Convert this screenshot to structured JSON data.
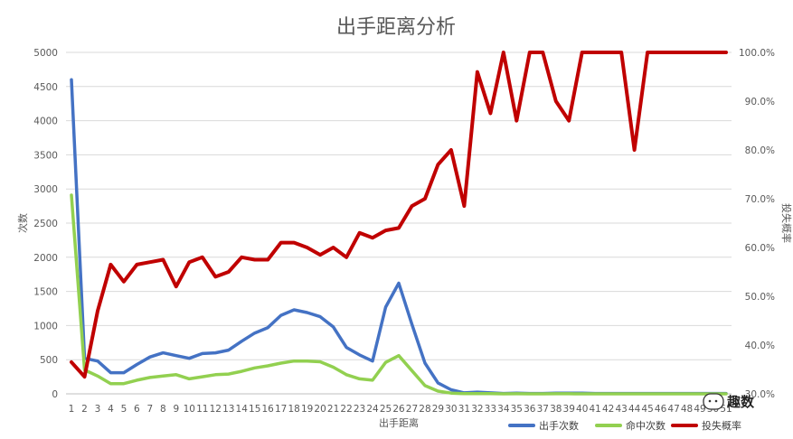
{
  "chart_data": {
    "type": "line",
    "title": "出手距离分析",
    "xlabel": "出手距离",
    "ylabel": "次数",
    "y2label": "投失概率",
    "categories": [
      1,
      2,
      3,
      4,
      5,
      6,
      7,
      8,
      9,
      10,
      11,
      12,
      13,
      14,
      15,
      16,
      17,
      18,
      19,
      20,
      21,
      22,
      23,
      24,
      25,
      26,
      27,
      28,
      29,
      30,
      31,
      32,
      33,
      34,
      35,
      36,
      37,
      38,
      39,
      40,
      41,
      42,
      43,
      44,
      45,
      46,
      47,
      48,
      49,
      50,
      51
    ],
    "x_tick_labels": [
      "1",
      "2",
      "3",
      "4",
      "5",
      "6",
      "7",
      "8",
      "9",
      "10",
      "11",
      "12",
      "13",
      "14",
      "15",
      "16",
      "17",
      "18",
      "19",
      "20",
      "21",
      "22",
      "23",
      "24",
      "25",
      "26",
      "27",
      "28",
      "29",
      "30",
      "31",
      "32",
      "33",
      "34",
      "35",
      "36",
      "37",
      "38",
      "39",
      "40",
      "41",
      "42",
      "43",
      "44",
      "45",
      "46",
      "47",
      "48",
      "49",
      "50",
      "51"
    ],
    "ylim": [
      0,
      5000
    ],
    "y_ticks": [
      "0",
      "500",
      "1000",
      "1500",
      "2000",
      "2500",
      "3000",
      "3500",
      "4000",
      "4500",
      "5000"
    ],
    "y2lim": [
      0.3,
      1.0
    ],
    "y2_ticks": [
      "30.0%",
      "40.0%",
      "50.0%",
      "60.0%",
      "70.0%",
      "80.0%",
      "90.0%",
      "100.0%"
    ],
    "grid": true,
    "legend_position": "bottom-right",
    "series": [
      {
        "name": "出手次数",
        "axis": "left",
        "color": "#4472c4",
        "values": [
          4600,
          520,
          480,
          310,
          310,
          430,
          540,
          600,
          560,
          520,
          590,
          600,
          640,
          770,
          890,
          970,
          1150,
          1230,
          1190,
          1130,
          980,
          680,
          570,
          480,
          1270,
          1620,
          1020,
          450,
          160,
          60,
          15,
          25,
          15,
          5,
          10,
          5,
          5,
          10,
          10,
          10,
          5,
          5,
          5,
          5,
          5,
          5,
          5,
          5,
          5,
          5,
          5
        ]
      },
      {
        "name": "命中次数",
        "axis": "left",
        "color": "#92d050",
        "values": [
          2910,
          350,
          260,
          150,
          150,
          200,
          240,
          260,
          280,
          220,
          250,
          280,
          290,
          330,
          380,
          410,
          450,
          480,
          480,
          470,
          390,
          280,
          220,
          200,
          460,
          560,
          340,
          120,
          40,
          10,
          2,
          3,
          2,
          0,
          1,
          0,
          0,
          1,
          1,
          0,
          0,
          0,
          0,
          0,
          0,
          0,
          0,
          0,
          0,
          0,
          0
        ]
      },
      {
        "name": "投失概率",
        "axis": "right",
        "color": "#c00000",
        "values": [
          0.365,
          0.335,
          0.47,
          0.565,
          0.53,
          0.565,
          0.57,
          0.575,
          0.52,
          0.57,
          0.58,
          0.54,
          0.55,
          0.58,
          0.575,
          0.575,
          0.61,
          0.61,
          0.6,
          0.585,
          0.6,
          0.58,
          0.63,
          0.62,
          0.635,
          0.64,
          0.685,
          0.7,
          0.77,
          0.8,
          0.685,
          0.96,
          0.875,
          1.0,
          0.86,
          1.0,
          1.0,
          0.9,
          0.86,
          1.0,
          1.0,
          1.0,
          1.0,
          0.8,
          1.0,
          1.0,
          1.0,
          1.0,
          1.0,
          1.0,
          1.0
        ]
      }
    ]
  },
  "watermark": {
    "text": "趣数",
    "icon": "wechat-icon"
  }
}
